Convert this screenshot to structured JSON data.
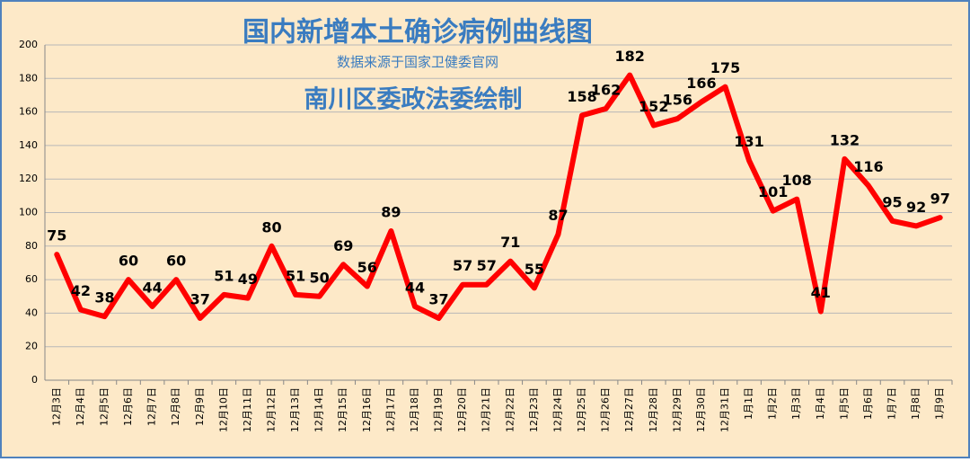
{
  "chart_data": {
    "type": "line",
    "title": "国内新增本土确诊病例曲线图",
    "subtitle": "数据来源于国家卫健委官网",
    "annotation": "南川区委政法委绘制",
    "categories": [
      "12月3日",
      "12月4日",
      "12月5日",
      "12月6日",
      "12月7日",
      "12月8日",
      "12月9日",
      "12月10日",
      "12月11日",
      "12月12日",
      "12月13日",
      "12月14日",
      "12月15日",
      "12月16日",
      "12月17日",
      "12月18日",
      "12月19日",
      "12月20日",
      "12月21日",
      "12月22日",
      "12月23日",
      "12月24日",
      "12月25日",
      "12月26日",
      "12月27日",
      "12月28日",
      "12月29日",
      "12月30日",
      "12月31日",
      "1月1日",
      "1月2日",
      "1月3日",
      "1月4日",
      "1月5日",
      "1月6日",
      "1月7日",
      "1月8日",
      "1月9日"
    ],
    "values": [
      75,
      42,
      38,
      60,
      44,
      60,
      37,
      51,
      49,
      80,
      51,
      50,
      69,
      56,
      89,
      44,
      37,
      57,
      57,
      71,
      55,
      87,
      158,
      162,
      182,
      152,
      156,
      166,
      175,
      131,
      101,
      108,
      41,
      132,
      116,
      95,
      92,
      97
    ],
    "color": "#ff0000",
    "ylim": [
      0,
      200
    ],
    "yticks": [
      0,
      20,
      40,
      60,
      80,
      100,
      120,
      140,
      160,
      180,
      200
    ],
    "grid": true
  }
}
